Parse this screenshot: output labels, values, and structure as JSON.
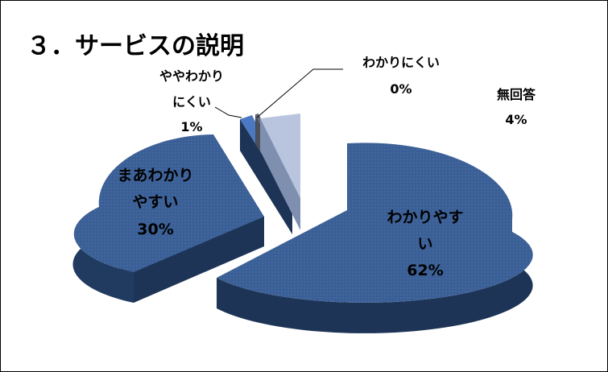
{
  "chart_data": {
    "type": "pie",
    "style": "3d-exploded",
    "title": "３．サービスの説明",
    "slices": [
      {
        "key": "easy",
        "name_lines": [
          "わかりやす",
          "い"
        ],
        "percent_label": "62%",
        "value": 62,
        "color": "#3a5f96"
      },
      {
        "key": "somewhat-easy",
        "name_lines": [
          "まあわかり",
          "やすい"
        ],
        "percent_label": "30%",
        "value": 30,
        "color": "#3a5f96"
      },
      {
        "key": "somewhat-hard",
        "name_lines": [
          "ややわかり",
          "にくい"
        ],
        "percent_label": "1%",
        "value": 1,
        "color": "#4a78c2"
      },
      {
        "key": "hard",
        "name_lines": [
          "わかりにくい"
        ],
        "percent_label": "0%",
        "value": 0,
        "color": "#4a4f5a"
      },
      {
        "key": "no-answer",
        "name_lines": [
          "無回答"
        ],
        "percent_label": "4%",
        "value": 4,
        "color": "#b9c5de"
      }
    ]
  }
}
